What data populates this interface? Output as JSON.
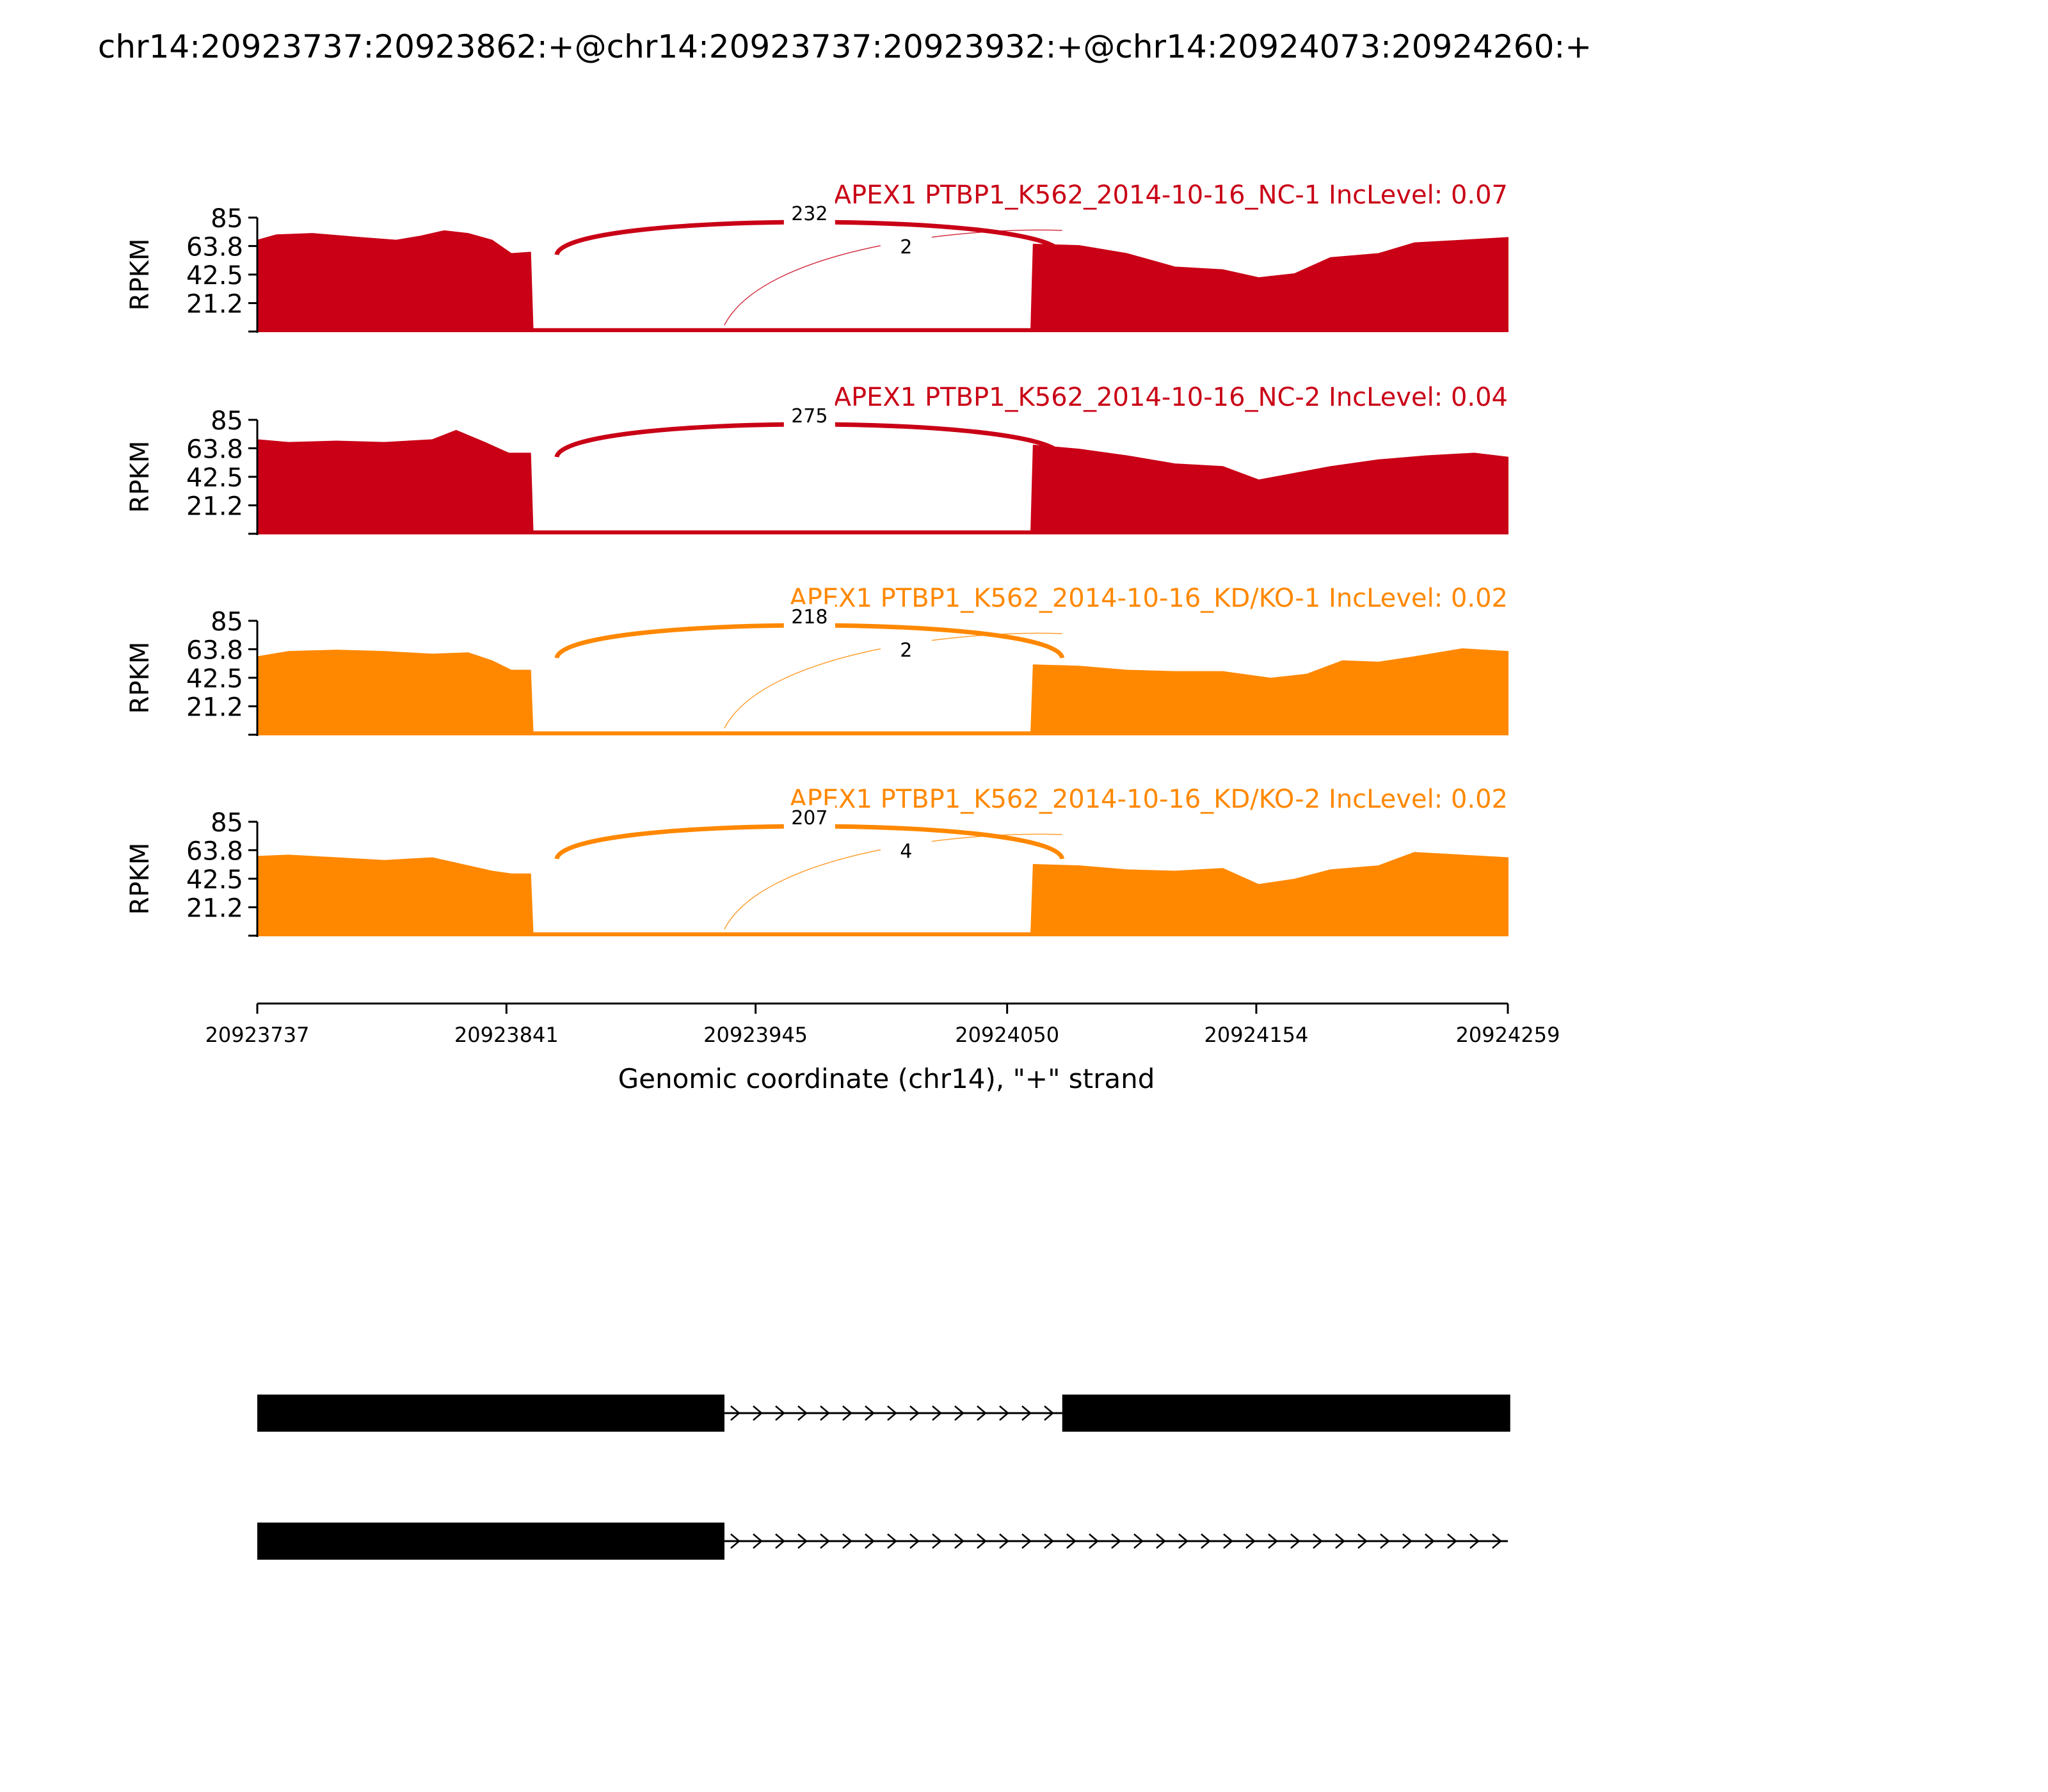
{
  "title": "chr14:20923737:20923862:+@chr14:20923737:20923932:+@chr14:20924073:20924260:+",
  "colors": {
    "nc": "#c90016",
    "kd": "#ff8800",
    "axis": "#000000",
    "gene": "#000000"
  },
  "chart_data": {
    "type": "area",
    "title": "chr14:20923737:20923862:+@chr14:20923737:20923932:+@chr14:20924073:20924260:+",
    "xlabel": "Genomic coordinate (chr14), \"+\" strand",
    "ylabel": "RPKM",
    "xlim": [
      20923737,
      20924259
    ],
    "ylim": [
      0,
      85
    ],
    "xticks": [
      "20923737",
      "20923841",
      "20923945",
      "20924050",
      "20924154",
      "20924259"
    ],
    "yticks": [
      "85",
      "63.8",
      "42.5",
      "21.2"
    ],
    "tracks": [
      {
        "label": "APEX1 PTBP1_K562_2014-10-16_NC-1 IncLevel: 0.07",
        "color": "#c90016",
        "coverage": [
          [
            20923737,
            68
          ],
          [
            20923745,
            72
          ],
          [
            20923760,
            73
          ],
          [
            20923780,
            70
          ],
          [
            20923795,
            68
          ],
          [
            20923805,
            71
          ],
          [
            20923815,
            75
          ],
          [
            20923825,
            73
          ],
          [
            20923835,
            68
          ],
          [
            20923843,
            58
          ],
          [
            20923851,
            59
          ],
          [
            20923852,
            2
          ],
          [
            20924060,
            2
          ],
          [
            20924061,
            65
          ],
          [
            20924080,
            64
          ],
          [
            20924100,
            58
          ],
          [
            20924120,
            48
          ],
          [
            20924140,
            46
          ],
          [
            20924155,
            40
          ],
          [
            20924170,
            43
          ],
          [
            20924185,
            55
          ],
          [
            20924205,
            58
          ],
          [
            20924220,
            66
          ],
          [
            20924240,
            68
          ],
          [
            20924259,
            70
          ]
        ],
        "junctions": [
          {
            "from": 20923862,
            "to": 20924073,
            "count": "232",
            "major": true
          },
          {
            "from": 20923932,
            "to": 20924073,
            "count": "2",
            "major": false
          }
        ]
      },
      {
        "label": "APEX1 PTBP1_K562_2014-10-16_NC-2 IncLevel: 0.04",
        "color": "#c90016",
        "coverage": [
          [
            20923737,
            70
          ],
          [
            20923750,
            68
          ],
          [
            20923770,
            69
          ],
          [
            20923790,
            68
          ],
          [
            20923810,
            70
          ],
          [
            20923820,
            77
          ],
          [
            20923832,
            68
          ],
          [
            20923842,
            60
          ],
          [
            20923851,
            60
          ],
          [
            20923852,
            2
          ],
          [
            20924060,
            2
          ],
          [
            20924061,
            66
          ],
          [
            20924080,
            63
          ],
          [
            20924100,
            58
          ],
          [
            20924120,
            52
          ],
          [
            20924140,
            50
          ],
          [
            20924155,
            40
          ],
          [
            20924170,
            45
          ],
          [
            20924185,
            50
          ],
          [
            20924205,
            55
          ],
          [
            20924225,
            58
          ],
          [
            20924245,
            60
          ],
          [
            20924259,
            57
          ]
        ],
        "junctions": [
          {
            "from": 20923862,
            "to": 20924073,
            "count": "275",
            "major": true
          }
        ]
      },
      {
        "label": "APEX1 PTBP1_K562_2014-10-16_KD/KO-1 IncLevel: 0.02",
        "color": "#ff8800",
        "coverage": [
          [
            20923737,
            58
          ],
          [
            20923750,
            62
          ],
          [
            20923770,
            63
          ],
          [
            20923790,
            62
          ],
          [
            20923810,
            60
          ],
          [
            20923825,
            61
          ],
          [
            20923835,
            55
          ],
          [
            20923843,
            48
          ],
          [
            20923851,
            48
          ],
          [
            20923852,
            2
          ],
          [
            20924060,
            2
          ],
          [
            20924061,
            52
          ],
          [
            20924080,
            51
          ],
          [
            20924100,
            48
          ],
          [
            20924120,
            47
          ],
          [
            20924140,
            47
          ],
          [
            20924160,
            42
          ],
          [
            20924175,
            45
          ],
          [
            20924190,
            55
          ],
          [
            20924205,
            54
          ],
          [
            20924220,
            58
          ],
          [
            20924240,
            64
          ],
          [
            20924259,
            62
          ]
        ],
        "junctions": [
          {
            "from": 20923862,
            "to": 20924073,
            "count": "218",
            "major": true
          },
          {
            "from": 20923932,
            "to": 20924073,
            "count": "2",
            "major": false
          }
        ]
      },
      {
        "label": "APEX1 PTBP1_K562_2014-10-16_KD/KO-2 IncLevel: 0.02",
        "color": "#ff8800",
        "coverage": [
          [
            20923737,
            59
          ],
          [
            20923750,
            60
          ],
          [
            20923770,
            58
          ],
          [
            20923790,
            56
          ],
          [
            20923810,
            58
          ],
          [
            20923820,
            54
          ],
          [
            20923835,
            48
          ],
          [
            20923843,
            46
          ],
          [
            20923851,
            46
          ],
          [
            20923852,
            2
          ],
          [
            20924060,
            2
          ],
          [
            20924061,
            53
          ],
          [
            20924080,
            52
          ],
          [
            20924100,
            49
          ],
          [
            20924120,
            48
          ],
          [
            20924140,
            50
          ],
          [
            20924155,
            38
          ],
          [
            20924170,
            42
          ],
          [
            20924185,
            49
          ],
          [
            20924205,
            52
          ],
          [
            20924220,
            62
          ],
          [
            20924240,
            60
          ],
          [
            20924259,
            58
          ]
        ],
        "junctions": [
          {
            "from": 20923862,
            "to": 20924073,
            "count": "207",
            "major": true
          },
          {
            "from": 20923932,
            "to": 20924073,
            "count": "4",
            "major": false
          }
        ]
      }
    ],
    "isoforms": [
      {
        "exons": [
          [
            20923737,
            20923932
          ],
          [
            20924073,
            20924260
          ]
        ]
      },
      {
        "exons": [
          [
            20923737,
            20923932
          ]
        ]
      }
    ]
  }
}
